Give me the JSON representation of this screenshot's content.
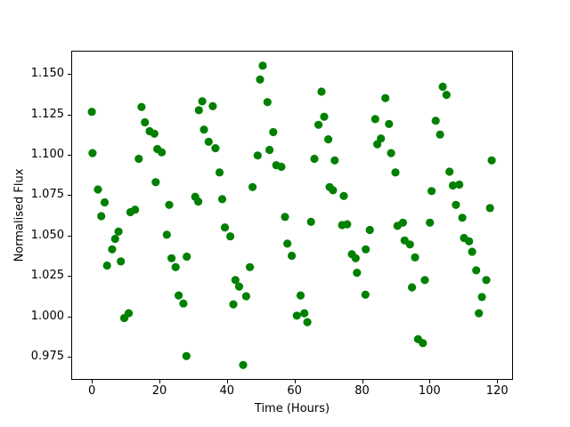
{
  "figure": {
    "background": "#ffffff"
  },
  "chart_data": {
    "type": "scatter",
    "title": "",
    "xlabel": "Time (Hours)",
    "ylabel": "Normalised Flux",
    "marker_color": "#008000",
    "marker_radius_px": 4.6,
    "grid": false,
    "legend": "none",
    "xlim": [
      -6.1,
      124.7
    ],
    "ylim": [
      0.9608,
      1.1643
    ],
    "xticks": {
      "values": [
        0,
        20,
        40,
        60,
        80,
        100,
        120
      ],
      "labels": [
        "0",
        "20",
        "40",
        "60",
        "80",
        "100",
        "120"
      ]
    },
    "yticks": {
      "values": [
        0.975,
        1.0,
        1.025,
        1.05,
        1.075,
        1.1,
        1.125,
        1.15
      ],
      "labels": [
        "0.975",
        "1.000",
        "1.025",
        "1.050",
        "1.075",
        "1.100",
        "1.125",
        "1.150"
      ]
    },
    "x": [
      0.0,
      0.2,
      1.8,
      2.8,
      3.8,
      4.5,
      6.0,
      6.9,
      7.9,
      8.6,
      9.6,
      10.9,
      11.4,
      12.8,
      13.9,
      14.7,
      15.7,
      17.1,
      18.5,
      18.9,
      19.4,
      20.7,
      22.2,
      22.9,
      23.6,
      24.8,
      25.7,
      27.1,
      28.0,
      28.1,
      30.6,
      31.5,
      31.7,
      32.7,
      33.2,
      34.6,
      35.8,
      36.6,
      37.8,
      38.6,
      39.4,
      41.0,
      41.9,
      42.5,
      43.6,
      44.8,
      45.7,
      46.8,
      47.6,
      49.1,
      49.8,
      50.6,
      52.0,
      52.6,
      53.7,
      54.6,
      56.1,
      57.2,
      57.9,
      59.2,
      60.7,
      61.8,
      62.9,
      63.8,
      64.9,
      65.9,
      67.1,
      68.0,
      68.8,
      70.0,
      70.4,
      71.4,
      71.9,
      74.1,
      74.6,
      75.6,
      77.0,
      78.1,
      78.5,
      81.0,
      81.1,
      82.3,
      83.9,
      84.5,
      85.6,
      86.9,
      88.0,
      88.6,
      89.9,
      90.5,
      92.1,
      92.6,
      94.2,
      94.8,
      95.7,
      96.6,
      98.0,
      98.6,
      100.1,
      100.6,
      101.8,
      103.1,
      103.9,
      105.0,
      105.9,
      106.9,
      107.8,
      108.8,
      109.7,
      110.2,
      111.7,
      112.6,
      113.8,
      114.6,
      115.5,
      116.8,
      117.9,
      118.4
    ],
    "y": [
      1.1265,
      1.101,
      1.0785,
      1.062,
      1.0705,
      1.0315,
      1.0415,
      1.048,
      1.0525,
      1.034,
      0.999,
      1.002,
      1.0645,
      1.066,
      1.0975,
      1.1295,
      1.12,
      1.1145,
      1.113,
      1.083,
      1.1035,
      1.1015,
      1.0505,
      1.069,
      1.036,
      1.0305,
      1.013,
      1.008,
      0.9755,
      1.037,
      1.074,
      1.071,
      1.1275,
      1.133,
      1.1155,
      1.108,
      1.13,
      1.104,
      1.089,
      1.0725,
      1.055,
      1.0495,
      1.0075,
      1.0225,
      1.0185,
      0.97,
      1.0125,
      1.0305,
      1.08,
      1.0995,
      1.1465,
      1.155,
      1.1325,
      1.103,
      1.114,
      1.0935,
      1.0925,
      1.0615,
      1.045,
      1.0375,
      1.0005,
      1.013,
      1.002,
      0.9965,
      1.0585,
      1.0975,
      1.1185,
      1.139,
      1.1235,
      1.1095,
      1.08,
      1.078,
      1.0965,
      1.0565,
      1.0745,
      1.057,
      1.0385,
      1.036,
      1.027,
      1.0135,
      1.0415,
      1.0535,
      1.122,
      1.1065,
      1.11,
      1.135,
      1.119,
      1.101,
      1.089,
      1.056,
      1.058,
      1.047,
      1.0445,
      1.018,
      1.0365,
      0.986,
      0.9835,
      1.0225,
      1.058,
      1.0775,
      1.121,
      1.1125,
      1.142,
      1.137,
      1.0895,
      1.081,
      1.069,
      1.0815,
      1.061,
      1.0485,
      1.0465,
      1.04,
      1.0285,
      1.002,
      1.012,
      1.0225,
      1.067,
      1.0965
    ]
  }
}
